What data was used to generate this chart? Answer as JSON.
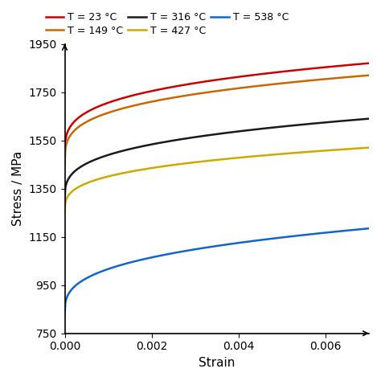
{
  "title": "",
  "xlabel": "Strain",
  "ylabel": "Stress / MPa",
  "xlim": [
    0,
    0.007
  ],
  "ylim": [
    750,
    1950
  ],
  "xticks": [
    0,
    0.002,
    0.004,
    0.006
  ],
  "yticks": [
    750,
    950,
    1150,
    1350,
    1550,
    1750,
    1950
  ],
  "legend_labels": [
    "T = 23 °C",
    "T = 149 °C",
    "T = 316 °C",
    "T = 427 °C",
    "T = 538 °C"
  ],
  "colors": [
    "#cc0000",
    "#cc6600",
    "#1a1a1a",
    "#ccaa00",
    "#1166cc"
  ],
  "curves": [
    {
      "sigma0": 1480,
      "delta": 390,
      "n": 0.28
    },
    {
      "sigma0": 1450,
      "delta": 370,
      "n": 0.28
    },
    {
      "sigma0": 1300,
      "delta": 340,
      "n": 0.3
    },
    {
      "sigma0": 1250,
      "delta": 270,
      "n": 0.3
    },
    {
      "sigma0": 830,
      "delta": 355,
      "n": 0.33
    }
  ],
  "background_color": "#ffffff",
  "figsize": [
    4.74,
    4.74
  ],
  "dpi": 100,
  "linewidth": 1.8,
  "legend_ncol_row1": 3,
  "legend_fontsize": 9,
  "axis_fontsize": 11,
  "tick_fontsize": 10
}
